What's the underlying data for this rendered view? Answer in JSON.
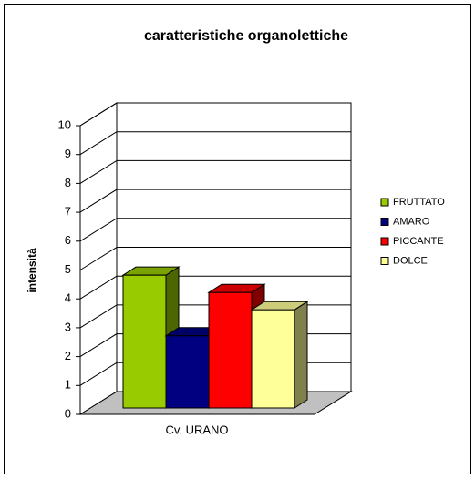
{
  "chart_data": {
    "type": "bar3d",
    "title": "caratteristiche organolettiche",
    "y_label": "intensità",
    "categories": [
      "Cv. URANO"
    ],
    "series": [
      {
        "name": "FRUTTATO",
        "color": "#99cc00",
        "values": [
          4.6
        ]
      },
      {
        "name": "AMARO",
        "color": "#000080",
        "values": [
          2.5
        ]
      },
      {
        "name": "PICCANTE",
        "color": "#ff0000",
        "values": [
          4.0
        ]
      },
      {
        "name": "DOLCE",
        "color": "#ffff99",
        "values": [
          3.4
        ]
      }
    ],
    "ylim": [
      0,
      10
    ],
    "yticks": [
      0,
      1,
      2,
      3,
      4,
      5,
      6,
      7,
      8,
      9,
      10
    ],
    "grid": true,
    "legend": "right"
  }
}
